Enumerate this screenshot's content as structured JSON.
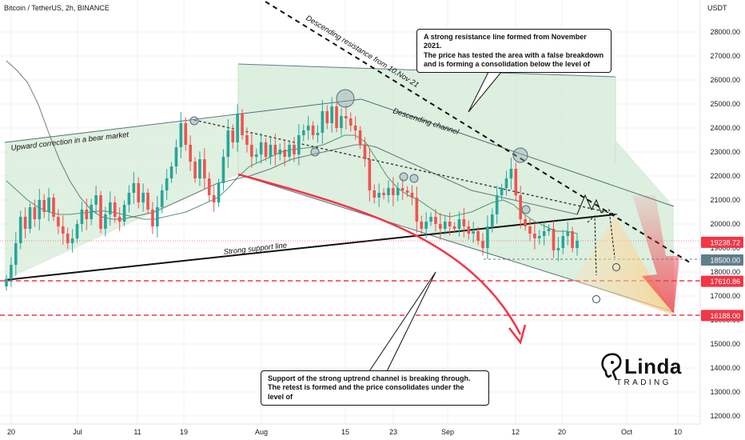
{
  "chart_data": {
    "type": "line",
    "title": "Bitcoin / TetherUS, 2h, BINANCE",
    "currency": "USDT",
    "ylim": [
      11800,
      28900
    ],
    "y_ticks": [
      12000,
      13000,
      14000,
      15000,
      16000,
      17000,
      18000,
      19000,
      20000,
      21000,
      22000,
      23000,
      24000,
      25000,
      26000,
      27000,
      28000
    ],
    "x_ticks": [
      "20",
      "Jul",
      "11",
      "19",
      "Aug",
      "15",
      "23",
      "Sep",
      "12",
      "20",
      "Oct",
      "10"
    ],
    "price_badges": [
      {
        "label": "19238.72",
        "value": 19238.72,
        "color": "#f23645"
      },
      {
        "label": "18500.00",
        "value": 18500,
        "color": "#607d8b"
      },
      {
        "label": "17610.86",
        "value": 17610.86,
        "color": "#f23645"
      },
      {
        "label": "16188.00",
        "value": 16188,
        "color": "#f23645"
      }
    ],
    "series": [
      {
        "values": [
          17700,
          18300,
          19200,
          20300,
          19800,
          20700,
          20200,
          21000,
          20500,
          21100,
          20300,
          19900,
          19600,
          19200,
          19400,
          20000,
          20600,
          20200,
          20800,
          21200,
          19800,
          20400,
          20900,
          20300,
          20100,
          20800,
          21300,
          21700,
          20900,
          21300,
          20600,
          19900,
          20700,
          21400,
          21900,
          22400,
          23200,
          24200,
          23300,
          22600,
          21900,
          22700,
          21900,
          21200,
          20900,
          21700,
          22800,
          23900,
          23400,
          24600,
          23700,
          23300,
          22800,
          22900,
          23400,
          22800,
          23300,
          22900,
          23100,
          22800,
          23300,
          22900,
          23700,
          23900,
          24100,
          23700,
          23800,
          24700,
          24200,
          24900,
          24000,
          24500,
          24400,
          24100,
          23900,
          23300,
          22700,
          21400,
          21100,
          21300,
          21200,
          21500,
          21200,
          21500,
          21400,
          21300,
          21100,
          20100,
          19800,
          20100,
          20300,
          20000,
          19800,
          20100,
          19900,
          19800,
          20200,
          19900,
          19600,
          19700,
          19300,
          19000,
          19900,
          20400,
          21200,
          21500,
          21900,
          22300,
          21200,
          20200,
          19900,
          19600,
          19400,
          19500,
          19700,
          19800,
          18900,
          19000,
          19500,
          19700,
          19000,
          19300
        ]
      }
    ],
    "moving_averages": [
      {
        "values": [
          21800,
          21400,
          21000,
          20700,
          20500,
          20400,
          20400,
          20450,
          20500,
          20550,
          20500,
          20400,
          20300,
          20200,
          20200,
          20300,
          20400,
          20500,
          20700,
          20900,
          21100,
          21500,
          22000,
          22400,
          22600,
          22800,
          23000,
          23100,
          23150,
          23200,
          23300,
          23500,
          23700,
          23700,
          23400,
          22700,
          22000,
          21500,
          21200,
          21000,
          20700,
          20400,
          20300,
          20400,
          20500,
          20700,
          20900,
          21000,
          20800,
          20400,
          20100,
          19900,
          19700,
          19700,
          19600
        ]
      },
      {
        "values": [
          26800,
          26400,
          25900,
          25000,
          23800,
          22700,
          21800,
          21100,
          20600,
          20300,
          20200,
          20200,
          20300,
          20400,
          20500,
          20700,
          20900,
          21100,
          21300,
          21500,
          21700,
          21800,
          21900,
          22000,
          22150,
          22300,
          22500,
          22700,
          22800,
          22900,
          23000,
          23100,
          23200,
          23300,
          23300,
          23200,
          23000,
          22800,
          22600,
          22400,
          22200,
          22000,
          21800,
          21600,
          21400,
          21300,
          21200,
          21100,
          21000,
          20900,
          20800,
          20700,
          20600,
          20500,
          20400
        ]
      }
    ],
    "annotations": [
      {
        "text": "Upward correction in a bear market"
      },
      {
        "text": "Descending resistance from 10.Nov 21"
      },
      {
        "text": "Descending channel"
      },
      {
        "text": "Strong support line"
      }
    ],
    "notes": {
      "top": [
        "A strong resistance line formed from November 2021.",
        "The price has tested the area with a false breakdown",
        "and is forming a consolidation below the level of"
      ],
      "bottom": [
        "Support of the strong uptrend channel is breaking through.",
        "The retest is formed and the price consolidates under the level of"
      ]
    },
    "logo": {
      "word": "Linda",
      "sub": "TRADING"
    },
    "colors": {
      "candle_up": "#26a69a",
      "candle_down": "#ef5350",
      "channel_fill": "#c8e6c9",
      "projection": "#f23645",
      "grid": "#eef0f3"
    },
    "grid": true
  }
}
